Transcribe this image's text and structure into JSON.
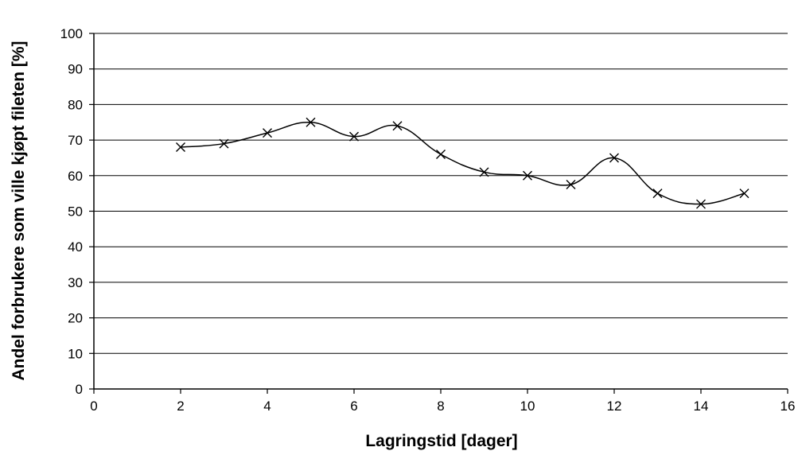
{
  "chart_data": {
    "type": "line",
    "title": "",
    "xlabel": "Lagringstid [dager]",
    "ylabel": "Andel forbrukere som ville kjøpt fileten [%]",
    "xlim": [
      0,
      16
    ],
    "ylim": [
      0,
      100
    ],
    "xticks": [
      0,
      2,
      4,
      6,
      8,
      10,
      12,
      14,
      16
    ],
    "yticks": [
      0,
      10,
      20,
      30,
      40,
      50,
      60,
      70,
      80,
      90,
      100
    ],
    "grid": "horizontal",
    "smoothed": true,
    "marker": "x",
    "series": [
      {
        "x": [
          2,
          3,
          4,
          5,
          6,
          7,
          8,
          9,
          10,
          11,
          12,
          13,
          14,
          15
        ],
        "y": [
          68,
          69,
          72,
          75,
          71,
          74,
          66,
          61,
          60,
          57.5,
          65,
          55,
          52,
          55
        ]
      }
    ]
  }
}
